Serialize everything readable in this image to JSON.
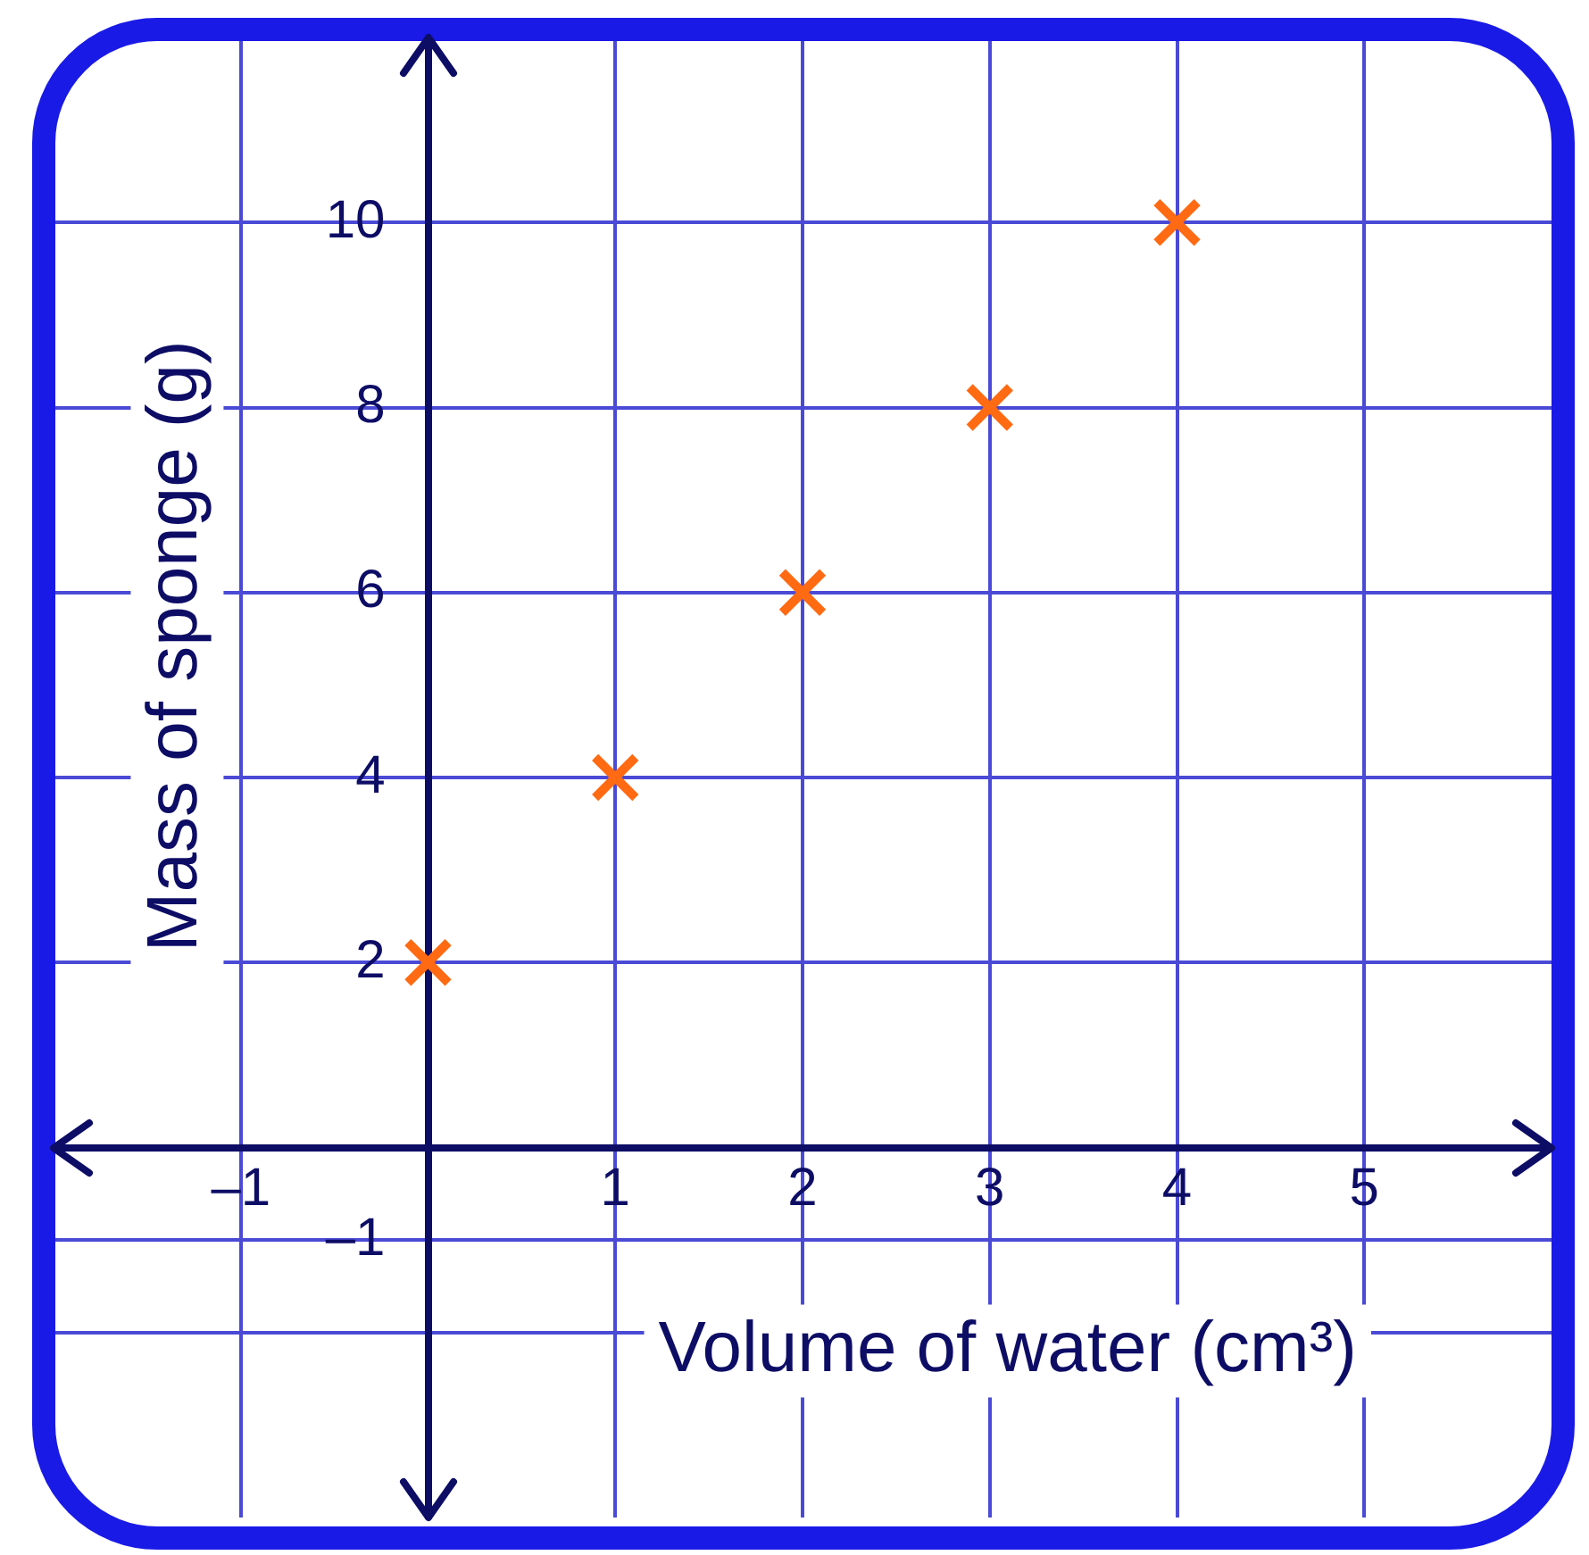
{
  "chart_data": {
    "type": "scatter",
    "xlabel": "Volume of water (cm³)",
    "ylabel": "Mass of sponge (g)",
    "x": [
      0,
      1,
      2,
      3,
      4
    ],
    "series": [
      {
        "color": "#ff6a13",
        "values": [
          2,
          4,
          6,
          8,
          10
        ]
      }
    ],
    "xlim": [
      -2,
      6
    ],
    "ylim": [
      -4,
      12
    ],
    "xticks": [
      {
        "value": -1,
        "label": "–1"
      },
      {
        "value": 0,
        "label": null
      },
      1,
      2,
      3,
      4,
      5
    ],
    "yticks": [
      {
        "value": -2,
        "label": null
      },
      {
        "value": -1,
        "label": "–1"
      },
      {
        "value": 0,
        "label": null
      },
      2,
      4,
      6,
      8,
      10
    ],
    "grid": true,
    "marker": "cross",
    "legend": false
  }
}
